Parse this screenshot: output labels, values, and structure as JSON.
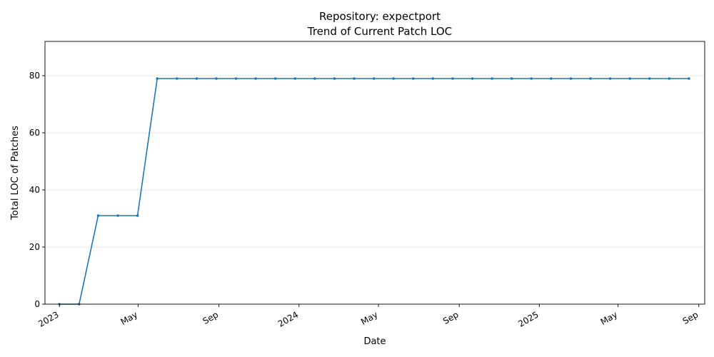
{
  "chart_data": {
    "type": "line",
    "title": "Repository: expectport",
    "subtitle": "Trend of Current Patch LOC",
    "xlabel": "Date",
    "ylabel": "Total LOC of Patches",
    "ylim": [
      0,
      92
    ],
    "xlim": [
      "2022-12-10",
      "2025-09-10"
    ],
    "grid": "y",
    "legend": "none",
    "color": "#1f77b4",
    "yticks": [
      0,
      20,
      40,
      60,
      80
    ],
    "xticks": [
      {
        "date": "2023-01-01",
        "label": "2023"
      },
      {
        "date": "2023-05-01",
        "label": "May"
      },
      {
        "date": "2023-09-01",
        "label": "Sep"
      },
      {
        "date": "2024-01-01",
        "label": "2024"
      },
      {
        "date": "2024-05-01",
        "label": "May"
      },
      {
        "date": "2024-09-01",
        "label": "Sep"
      },
      {
        "date": "2025-01-01",
        "label": "2025"
      },
      {
        "date": "2025-05-01",
        "label": "May"
      },
      {
        "date": "2025-09-01",
        "label": "Sep"
      }
    ],
    "series": [
      {
        "x": [
          "2023-01-01",
          "2023-01-31",
          "2023-03-01",
          "2023-03-31",
          "2023-04-30",
          "2023-05-30",
          "2023-06-29",
          "2023-07-29",
          "2023-08-28",
          "2023-09-27",
          "2023-10-27",
          "2023-11-26",
          "2023-12-26",
          "2024-01-25",
          "2024-02-24",
          "2024-03-25",
          "2024-04-24",
          "2024-05-24",
          "2024-06-23",
          "2024-07-23",
          "2024-08-22",
          "2024-09-21",
          "2024-10-21",
          "2024-11-20",
          "2024-12-20",
          "2025-01-19",
          "2025-02-18",
          "2025-03-20",
          "2025-04-19",
          "2025-05-19",
          "2025-06-18",
          "2025-07-18",
          "2025-08-17"
        ],
        "values": [
          0,
          0,
          31,
          31,
          31,
          79,
          79,
          79,
          79,
          79,
          79,
          79,
          79,
          79,
          79,
          79,
          79,
          79,
          79,
          79,
          79,
          79,
          79,
          79,
          79,
          79,
          79,
          79,
          79,
          79,
          79,
          79,
          79
        ]
      }
    ]
  }
}
